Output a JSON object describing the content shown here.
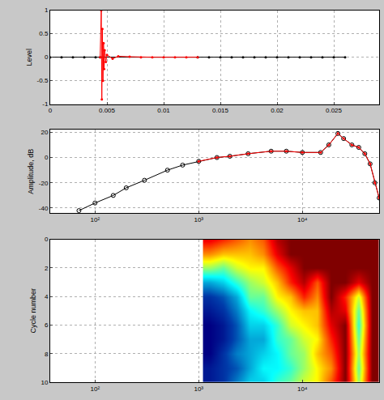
{
  "chart_data": [
    {
      "type": "line",
      "ylabel": "Level",
      "grid": true,
      "xlim": [
        0,
        0.029
      ],
      "xticks": [
        0,
        0.005,
        0.01,
        0.015,
        0.02,
        0.025
      ],
      "ylim": [
        -1,
        1
      ],
      "yticks": [
        -1,
        -0.5,
        0,
        0.5,
        1
      ],
      "series": [
        {
          "color": "#000000",
          "marker": "dot",
          "line_style": "solid",
          "x": [
            0,
            0.001,
            0.002,
            0.003,
            0.004,
            0.0044,
            0.013,
            0.014,
            0.015,
            0.016,
            0.017,
            0.018,
            0.019,
            0.02,
            0.021,
            0.022,
            0.023,
            0.024,
            0.025,
            0.026
          ],
          "values": [
            0,
            0,
            0,
            0,
            0,
            0,
            0,
            0,
            0,
            0,
            0,
            0,
            0,
            0,
            0,
            0,
            0,
            0,
            0,
            0
          ]
        },
        {
          "color": "#ff0000",
          "marker": "dot",
          "line_style": "solid",
          "x": [
            0.0044,
            0.0045,
            0.00455,
            0.0046,
            0.00465,
            0.0047,
            0.00475,
            0.0048,
            0.0049,
            0.005,
            0.0055,
            0.006,
            0.007,
            0.008,
            0.009,
            0.01,
            0.011,
            0.012,
            0.013
          ],
          "values": [
            0,
            1,
            -0.9,
            0.6,
            -0.5,
            0.3,
            -0.25,
            0.15,
            -0.1,
            0.05,
            -0.03,
            0.02,
            0.01,
            0,
            0,
            0,
            0,
            0,
            0
          ]
        }
      ]
    },
    {
      "type": "line",
      "ylabel": "Amplitude, dB",
      "grid": true,
      "log": "x",
      "xlim": [
        37,
        55000
      ],
      "xticks": [
        {
          "value": 100,
          "label": "10²"
        },
        {
          "value": 1000,
          "label": "10³"
        },
        {
          "value": 10000,
          "label": "10⁴"
        }
      ],
      "ylim": [
        -44,
        22
      ],
      "yticks": [
        -40,
        -20,
        0,
        20
      ],
      "series": [
        {
          "color": "#000000",
          "marker": "circle",
          "line_style": "solid",
          "x": [
            70,
            100,
            150,
            200,
            300,
            500,
            700,
            1000,
            1500,
            2000,
            3000,
            5000,
            7000,
            10000,
            15000,
            18000,
            22000,
            25000,
            30000,
            35000,
            40000,
            45000,
            50000,
            55000
          ],
          "values": [
            -42,
            -36,
            -30,
            -24,
            -18,
            -10,
            -6,
            -3,
            0,
            1,
            3,
            5,
            5,
            4,
            4,
            10,
            19,
            15,
            10,
            8,
            3,
            -5,
            -20,
            -32
          ]
        },
        {
          "color": "#ff0000",
          "marker": "dot",
          "line_style": "solid",
          "x": [
            1000,
            1500,
            2000,
            3000,
            5000,
            7000,
            10000,
            15000,
            18000,
            22000,
            25000,
            30000,
            35000,
            40000,
            45000,
            50000,
            55000
          ],
          "values": [
            -3,
            0,
            1,
            3,
            5,
            5,
            4,
            4,
            10,
            19,
            15,
            10,
            8,
            3,
            -5,
            -20,
            -32
          ]
        }
      ]
    },
    {
      "type": "heatmap",
      "ylabel": "Cycle number",
      "grid": true,
      "log": "x",
      "color": "Jet",
      "xlim": [
        37,
        55000
      ],
      "xticks": [
        {
          "value": 100,
          "label": "10²"
        },
        {
          "value": 1000,
          "label": "10³"
        },
        {
          "value": 10000,
          "label": "10⁴"
        }
      ],
      "ylim": [
        10,
        0
      ],
      "yticks": [
        0,
        2,
        4,
        6,
        8,
        10
      ],
      "x": [
        1100,
        1500,
        2000,
        2700,
        3600,
        4900,
        6600,
        8900,
        12000,
        16000,
        22000,
        30000,
        40000,
        55000
      ],
      "y": [
        0,
        1,
        2,
        3,
        4,
        5,
        6,
        7,
        8,
        9,
        10
      ],
      "cells": [
        [
          0.9,
          0.85,
          0.8,
          0.75,
          0.8,
          0.95,
          1,
          1,
          1,
          1,
          1,
          1,
          1
        ],
        [
          0.75,
          0.7,
          0.7,
          0.7,
          0.75,
          0.9,
          1,
          1,
          1,
          1,
          1,
          1,
          1
        ],
        [
          0.55,
          0.5,
          0.6,
          0.65,
          0.65,
          0.8,
          0.9,
          1,
          1,
          1,
          1,
          1,
          1
        ],
        [
          0.3,
          0.35,
          0.45,
          0.55,
          0.6,
          0.7,
          0.85,
          0.95,
          0.8,
          1,
          1,
          0.9,
          1
        ],
        [
          0.15,
          0.2,
          0.3,
          0.5,
          0.5,
          0.65,
          0.7,
          0.85,
          0.75,
          1,
          0.85,
          0.6,
          1
        ],
        [
          0.1,
          0.15,
          0.25,
          0.4,
          0.45,
          0.55,
          0.65,
          0.7,
          0.7,
          0.95,
          0.9,
          0.5,
          1
        ],
        [
          0.05,
          0.1,
          0.2,
          0.35,
          0.35,
          0.45,
          0.6,
          0.65,
          0.7,
          0.9,
          1,
          0.45,
          1
        ],
        [
          0.05,
          0.1,
          0.2,
          0.3,
          0.3,
          0.45,
          0.5,
          0.6,
          0.65,
          0.85,
          1,
          0.5,
          1
        ],
        [
          0.05,
          0.15,
          0.25,
          0.3,
          0.35,
          0.4,
          0.5,
          0.55,
          0.7,
          0.8,
          1,
          0.55,
          1
        ],
        [
          0.1,
          0.15,
          0.2,
          0.3,
          0.4,
          0.4,
          0.45,
          0.55,
          0.65,
          0.75,
          1,
          0.5,
          1
        ],
        [
          0.1,
          0.15,
          0.25,
          0.35,
          0.35,
          0.45,
          0.5,
          0.6,
          0.65,
          0.8,
          1,
          0.55,
          1
        ]
      ]
    }
  ]
}
